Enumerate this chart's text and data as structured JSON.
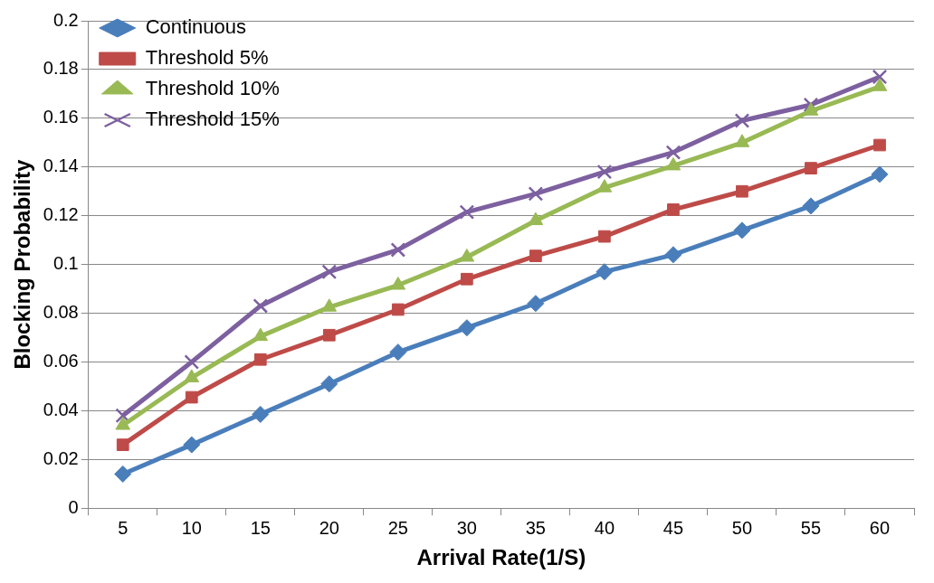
{
  "chart_data": {
    "type": "line",
    "xlabel": "Arrival Rate(1/S)",
    "ylabel": "Blocking Probability",
    "categories": [
      "5",
      "10",
      "15",
      "20",
      "25",
      "30",
      "35",
      "40",
      "45",
      "50",
      "55",
      "60"
    ],
    "series": [
      {
        "name": "Continuous",
        "color": "#4a7ebb",
        "marker": "diamond",
        "values": [
          0.014,
          0.026,
          0.0385,
          0.051,
          0.064,
          0.074,
          0.084,
          0.097,
          0.104,
          0.114,
          0.124,
          0.137
        ]
      },
      {
        "name": "Threshold 5%",
        "color": "#be4b48",
        "marker": "square",
        "values": [
          0.026,
          0.0455,
          0.061,
          0.071,
          0.0815,
          0.094,
          0.1035,
          0.1115,
          0.1225,
          0.13,
          0.1395,
          0.149
        ]
      },
      {
        "name": "Threshold 10%",
        "color": "#98b954",
        "marker": "triangle",
        "values": [
          0.034,
          0.0535,
          0.0705,
          0.0825,
          0.0915,
          0.103,
          0.118,
          0.1315,
          0.1405,
          0.15,
          0.163,
          0.173
        ]
      },
      {
        "name": "Threshold 15%",
        "color": "#7d60a0",
        "marker": "cross",
        "values": [
          0.038,
          0.06,
          0.083,
          0.097,
          0.106,
          0.1215,
          0.129,
          0.138,
          0.146,
          0.159,
          0.1655,
          0.177
        ]
      }
    ],
    "ylim": [
      0,
      0.2
    ],
    "yticks": [
      0,
      0.02,
      0.04,
      0.06,
      0.08,
      0.1,
      0.12,
      0.14,
      0.16,
      0.18,
      0.2
    ],
    "grid": "y",
    "legend": "top left",
    "line_style": "solid"
  }
}
